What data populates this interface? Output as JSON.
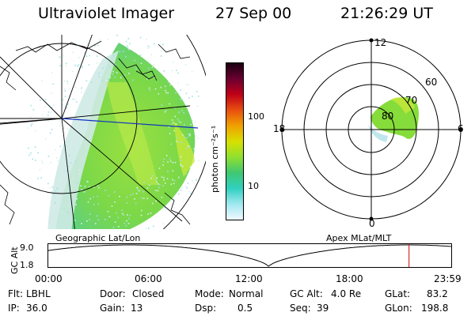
{
  "header": {
    "instrument": "Ultraviolet Imager",
    "date": "27 Sep 00",
    "time": "21:26:29 UT"
  },
  "colorbar": {
    "unit_label": "photon cm⁻²s⁻¹",
    "ticks": [
      "100",
      "10"
    ],
    "colors": [
      "#1a0010",
      "#6a0030",
      "#c00018",
      "#e85010",
      "#f0a000",
      "#d8e000",
      "#90e030",
      "#40c870",
      "#30d0c0",
      "#a0e8f0",
      "#f0f8ff"
    ]
  },
  "left_map": {
    "caption": "Geographic Lat/Lon",
    "aurora_color": "#86dc3a"
  },
  "polar_plot": {
    "caption": "Apex MLat/MLT",
    "mlt_labels": {
      "top": "12",
      "bottom": "0",
      "left": "18",
      "right": "6"
    },
    "lat_labels": [
      "60",
      "70",
      "80"
    ]
  },
  "altitude_plot": {
    "y_label": "GC Alt",
    "y_ticks": [
      "9.0",
      "1.8"
    ],
    "x_ticks": [
      "00:00",
      "06:00",
      "12:00",
      "18:00",
      "23:59"
    ],
    "marker_color": "#d03030",
    "marker_hour": 21.44
  },
  "status": {
    "filter_label": "Flt:",
    "filter_value": "LBHL",
    "ip_label": "IP:",
    "ip_value": "36.0",
    "door_label": "Door:",
    "door_value": "Closed",
    "gain_label": "Gain:",
    "gain_value": "13",
    "mode_label": "Mode:",
    "mode_value": "Normal",
    "dsp_label": "Dsp:",
    "dsp_value": "0.5",
    "gcalt_label": "GC Alt:",
    "gcalt_value": "4.0 Re",
    "seq_label": "Seq:",
    "seq_value": "39",
    "glat_label": "GLat:",
    "glat_value": "83.2",
    "glon_label": "GLon:",
    "glon_value": "198.8"
  }
}
